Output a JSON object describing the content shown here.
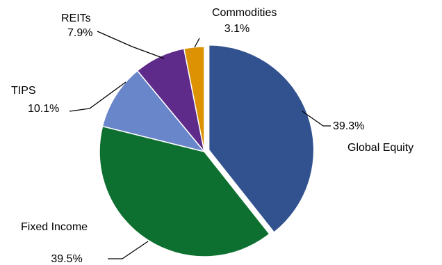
{
  "chart_data": {
    "type": "pie",
    "slices": [
      {
        "name": "Global Equity",
        "value": 39.3,
        "label": "39.3%",
        "color": "#32528f"
      },
      {
        "name": "Fixed Income",
        "value": 39.5,
        "label": "39.5%",
        "color": "#0e7030"
      },
      {
        "name": "TIPS",
        "value": 10.1,
        "label": "10.1%",
        "color": "#6986ca"
      },
      {
        "name": "REITs",
        "value": 7.9,
        "label": "7.9%",
        "color": "#5f2b8a"
      },
      {
        "name": "Commodities",
        "value": 3.1,
        "label": "3.1%",
        "color": "#dd9204"
      }
    ],
    "start": "12 o'clock",
    "direction": "clockwise",
    "exploded_slice": "Global Equity",
    "legend": "none",
    "labels": "outside with leader lines"
  }
}
